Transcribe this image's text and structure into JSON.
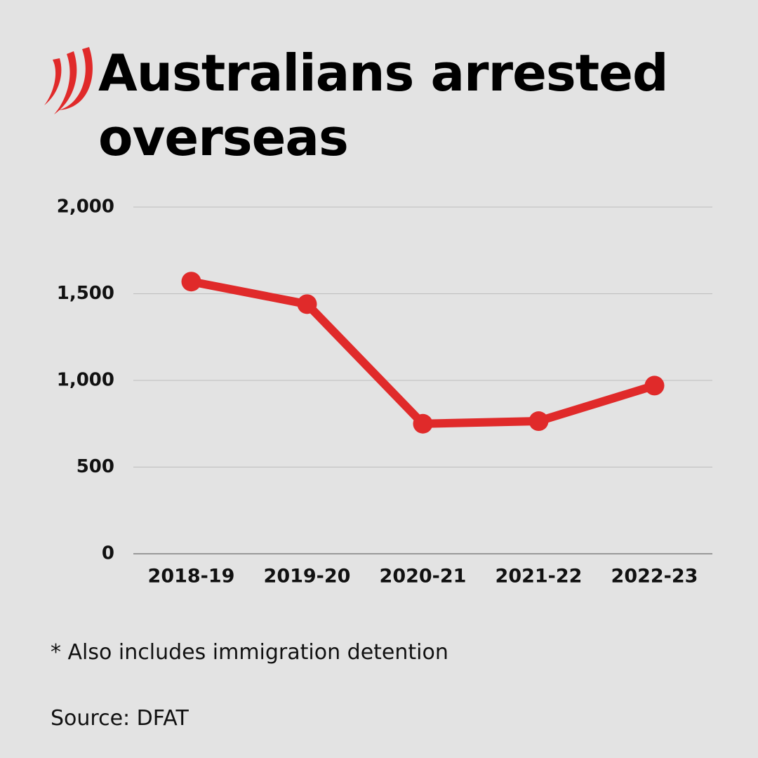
{
  "chart_data": {
    "type": "line",
    "title": "Australians arrested overseas",
    "categories": [
      "2018-19",
      "2019-20",
      "2020-21",
      "2021-22",
      "2022-23"
    ],
    "values": [
      1570,
      1440,
      750,
      765,
      970
    ],
    "color": "#e02a2a",
    "ylim": [
      0,
      2000
    ],
    "yticks": [
      0,
      500,
      {
        "value": 1000,
        "label": "1,000"
      },
      {
        "value": 1500,
        "label": "1,500"
      },
      {
        "value": 2000,
        "label": "2,000"
      }
    ],
    "grid": true,
    "note": "* Also includes immigration detention",
    "source": "Source: DFAT"
  }
}
